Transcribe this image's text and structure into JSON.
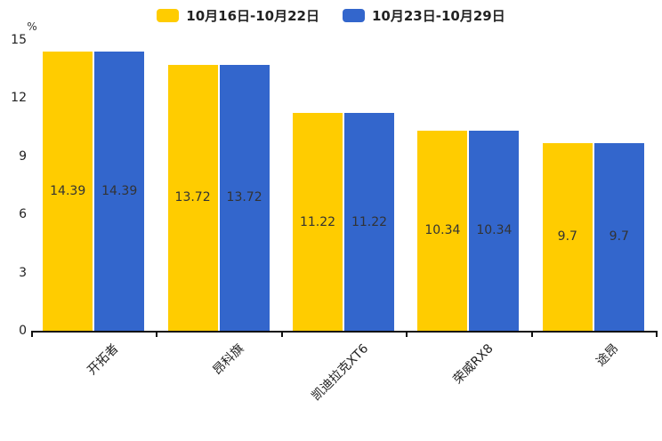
{
  "chart_data": {
    "type": "bar",
    "title": "",
    "categories": [
      "开拓者",
      "昂科旗",
      "凯迪拉克XT6",
      "荣威RX8",
      "途昂"
    ],
    "series": [
      {
        "name": "10月16日-10月22日",
        "color": "#FFCC00",
        "values": [
          14.39,
          13.72,
          11.22,
          10.34,
          9.7
        ]
      },
      {
        "name": "10月23日-10月29日",
        "color": "#3366CC",
        "values": [
          14.39,
          13.72,
          11.22,
          10.34,
          9.7
        ]
      }
    ],
    "value_labels": [
      [
        "14.39",
        "13.72",
        "11.22",
        "10.34",
        "9.7"
      ],
      [
        "14.39",
        "13.72",
        "11.22",
        "10.34",
        "9.7"
      ]
    ],
    "xlabel": "",
    "ylabel": "%",
    "yticks": [
      "0",
      "3",
      "6",
      "9",
      "12",
      "15"
    ],
    "ylim": [
      0,
      15
    ],
    "grid": false,
    "legend_position": "top",
    "axis_color": "#111111",
    "value_label_color": "#333333",
    "background": "#ffffff"
  }
}
